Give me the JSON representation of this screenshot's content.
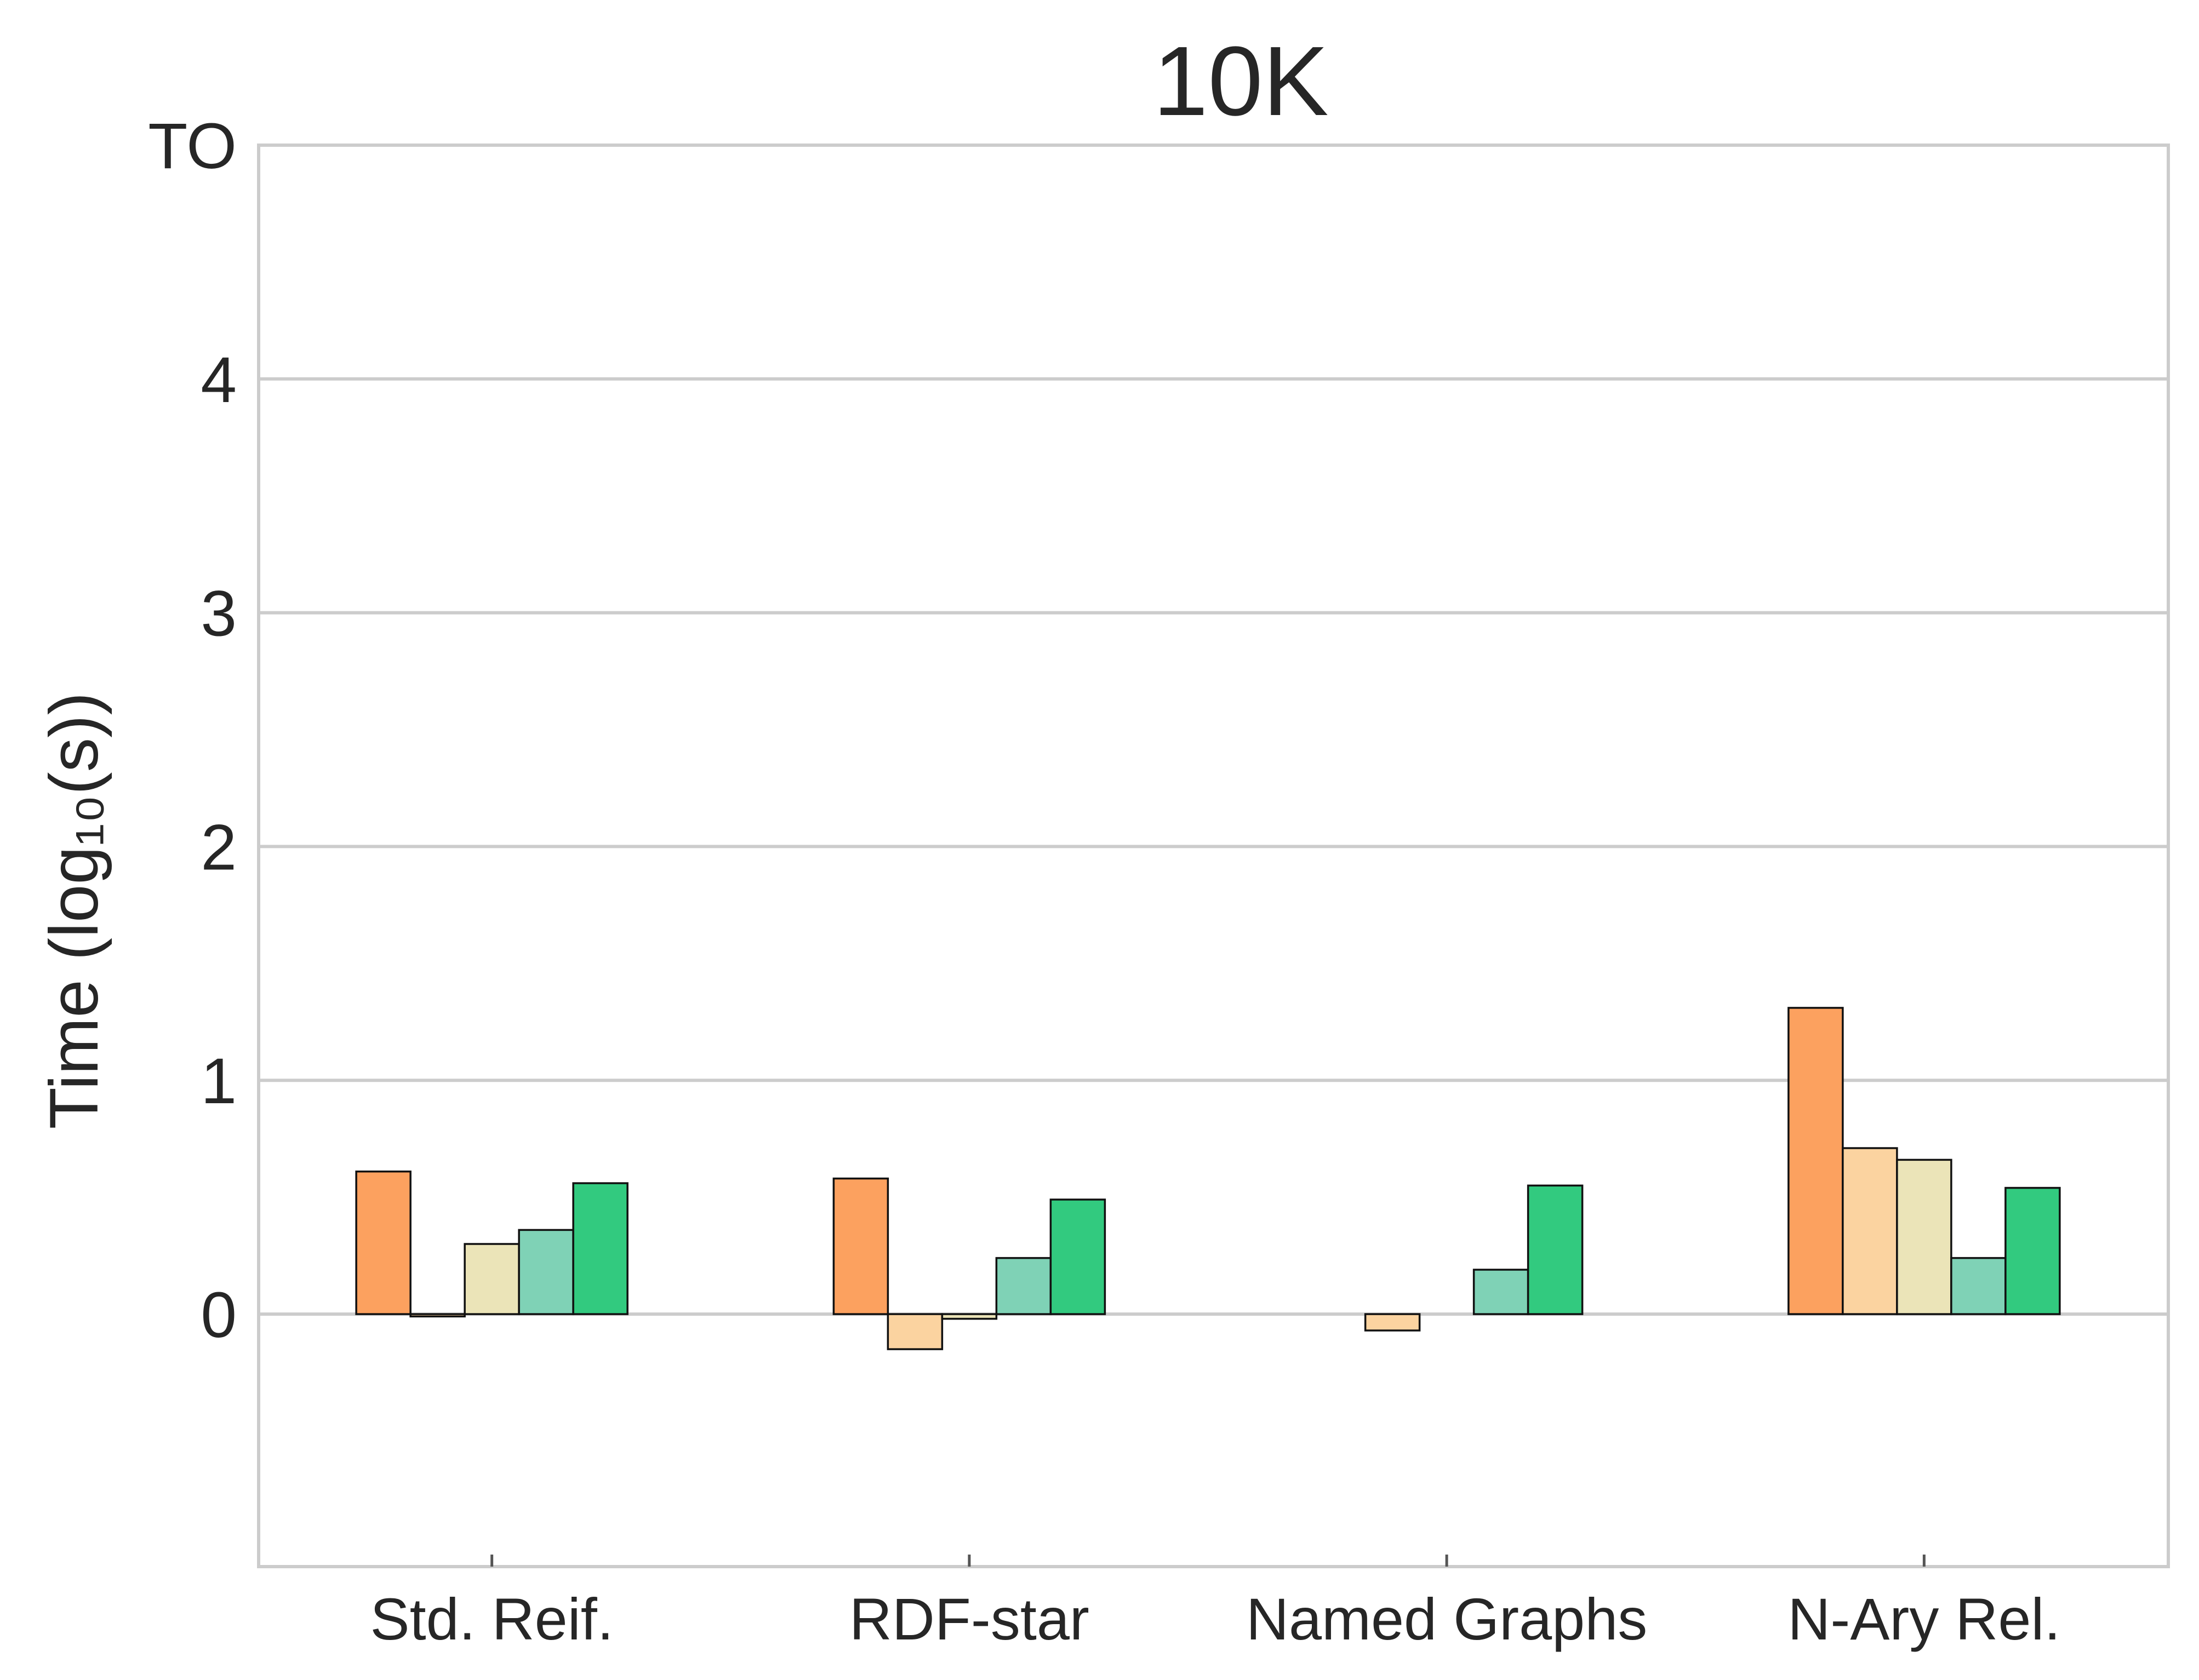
{
  "chart_data": {
    "type": "bar",
    "title": "10K",
    "xlabel": "",
    "ylabel": "Time (log₁₀(s))",
    "ylim": [
      -1.08,
      5.0
    ],
    "yticks": [
      {
        "value": 0,
        "label": "0"
      },
      {
        "value": 1,
        "label": "1"
      },
      {
        "value": 2,
        "label": "2"
      },
      {
        "value": 3,
        "label": "3"
      },
      {
        "value": 4,
        "label": "4"
      },
      {
        "value": 5,
        "label": "TO"
      }
    ],
    "categories": [
      "Std. Reif.",
      "RDF-star",
      "Named Graphs",
      "N-Ary Rel."
    ],
    "grid": "horizontal",
    "legend": "none",
    "series": [
      {
        "color": "#fca15f",
        "values": [
          0.61,
          0.58,
          null,
          1.31
        ]
      },
      {
        "color": "#fbd3a0",
        "values": [
          -0.01,
          -0.15,
          -0.07,
          0.71
        ]
      },
      {
        "color": "#ebe4b8",
        "values": [
          0.3,
          -0.02,
          null,
          0.66
        ]
      },
      {
        "color": "#7fd2b6",
        "values": [
          0.36,
          0.24,
          0.19,
          0.24
        ]
      },
      {
        "color": "#32ca7f",
        "values": [
          0.56,
          0.49,
          0.55,
          0.54
        ]
      }
    ]
  }
}
